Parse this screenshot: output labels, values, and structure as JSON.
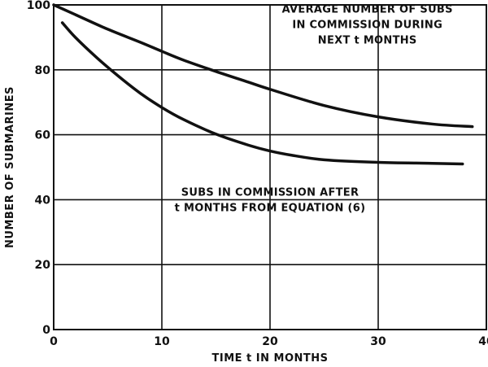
{
  "chart_data": {
    "type": "line",
    "title": "",
    "xlabel": "TIME t IN MONTHS",
    "ylabel": "NUMBER OF SUBMARINES",
    "xlim": [
      0,
      40
    ],
    "ylim": [
      0,
      100
    ],
    "x_ticks": [
      "0",
      "10",
      "20",
      "30",
      "40"
    ],
    "y_ticks": [
      "0",
      "20",
      "40",
      "60",
      "80",
      "100"
    ],
    "grid": true,
    "legend": "none",
    "series": [
      {
        "x": [
          0,
          2,
          5,
          8,
          10,
          12,
          15,
          18,
          20,
          25,
          30,
          35,
          38.7
        ],
        "y": [
          100,
          97,
          92.5,
          88.5,
          85.7,
          83,
          79.5,
          76.2,
          74,
          69,
          65.5,
          63.3,
          62.5
        ]
      },
      {
        "x": [
          0.8,
          2,
          4,
          6,
          8,
          10,
          12,
          15,
          18,
          20,
          22,
          25,
          30,
          35,
          37.8
        ],
        "y": [
          94.5,
          90,
          83.7,
          78,
          72.8,
          68.4,
          64.7,
          60.2,
          56.8,
          55,
          53.7,
          52.3,
          51.5,
          51.2,
          51
        ]
      }
    ],
    "annotations": [
      {
        "lines": [
          "AVERAGE NUMBER OF SUBS",
          "IN COMMISSION DURING",
          "NEXT t MONTHS"
        ]
      },
      {
        "lines": [
          "SUBS IN COMMISSION AFTER",
          "t MONTHS FROM EQUATION (6)"
        ]
      }
    ],
    "colors": {
      "ink": "#111111",
      "background": "#ffffff"
    }
  }
}
